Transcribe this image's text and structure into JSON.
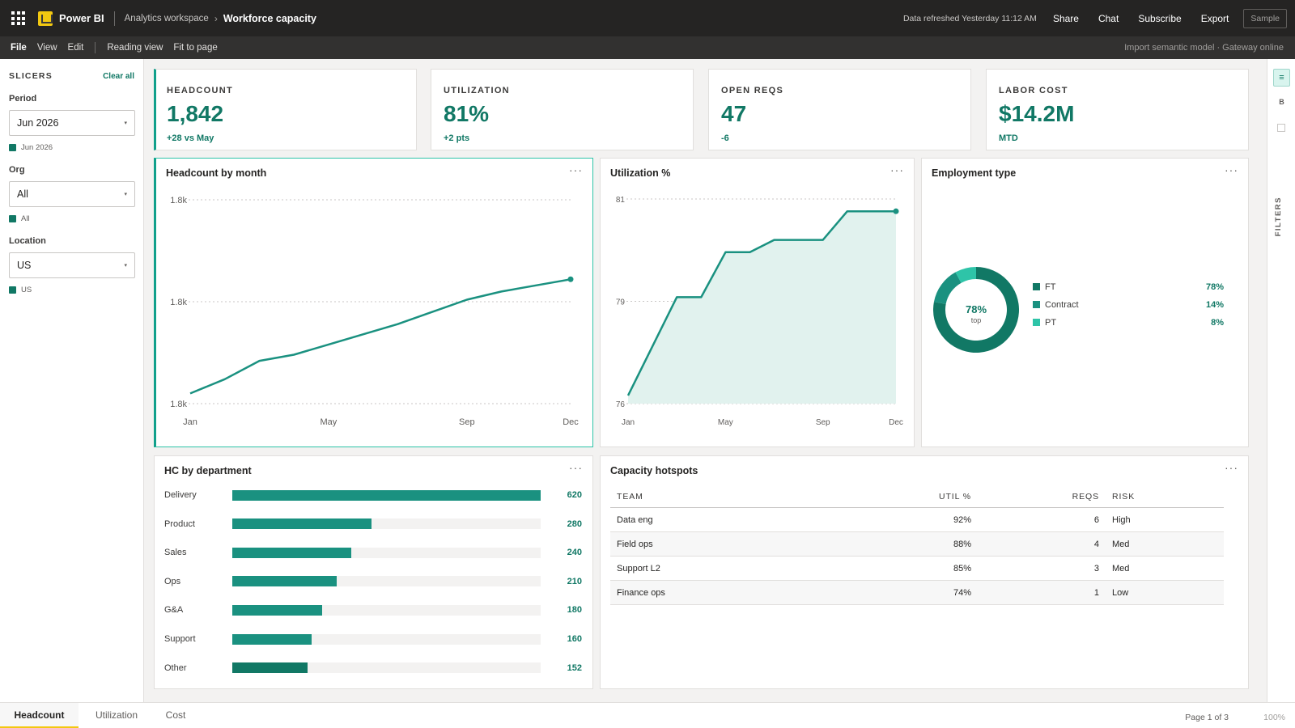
{
  "app": {
    "brand": "Power BI",
    "workspace": "Analytics workspace",
    "report": "Workforce capacity",
    "refresh": "Data refreshed Yesterday 11:12 AM",
    "actions": [
      "Share",
      "Chat",
      "Subscribe",
      "Export"
    ],
    "sample": "Sample"
  },
  "menu": {
    "items": [
      "File",
      "View",
      "Edit"
    ],
    "view_items": [
      "Reading view",
      "Fit to page"
    ],
    "status": "Import semantic model · Gateway online"
  },
  "slicers": {
    "title": "SLICERS",
    "clear": "Clear all",
    "items": [
      {
        "label": "Period",
        "value": "Jun 2026",
        "chip": "Jun 2026"
      },
      {
        "label": "Org",
        "value": "All",
        "chip": "All"
      },
      {
        "label": "Location",
        "value": "US",
        "chip": "US"
      }
    ]
  },
  "kpis": [
    {
      "label": "HEADCOUNT",
      "value": "1,842",
      "delta": "+28 vs May"
    },
    {
      "label": "UTILIZATION",
      "value": "81%",
      "delta": "+2 pts"
    },
    {
      "label": "OPEN REQS",
      "value": "47",
      "delta": "-6"
    },
    {
      "label": "LABOR COST",
      "value": "$14.2M",
      "delta": "MTD"
    }
  ],
  "visuals": {
    "headcount_title": "Headcount by month",
    "util_title": "Utilization %",
    "emp_title": "Employment type",
    "dept_title": "HC by department",
    "hotspots_title": "Capacity hotspots",
    "more": "···"
  },
  "colors": {
    "accent": "#117865",
    "accent_mid": "#1a9180",
    "accent_light": "#2ec4a8",
    "area_fill": "#e1f2ee",
    "brand_yellow": "#f2c811",
    "topbar": "#252423"
  },
  "chart_data": [
    {
      "type": "line",
      "title": "Headcount by month",
      "x": [
        "Jan",
        "Feb",
        "Mar",
        "Apr",
        "May",
        "Jun",
        "Jul",
        "Aug",
        "Sep",
        "Oct",
        "Nov",
        "Dec"
      ],
      "xticks": [
        "Jan",
        "May",
        "Sep",
        "Dec"
      ],
      "values": [
        1752,
        1759,
        1768,
        1771,
        1776,
        1781,
        1786,
        1792,
        1798,
        1802,
        1805,
        1808
      ],
      "yticks": [
        "1.8k",
        "1.8k",
        "1.8k"
      ],
      "ylim": [
        1747,
        1847
      ],
      "grid": true
    },
    {
      "type": "area",
      "title": "Utilization %",
      "x": [
        "Jan",
        "Feb",
        "Mar",
        "Apr",
        "May",
        "Jun",
        "Jul",
        "Aug",
        "Sep",
        "Oct",
        "Nov",
        "Dec"
      ],
      "xticks": [
        "Jan",
        "May",
        "Sep",
        "Dec"
      ],
      "values": [
        76.2,
        77.4,
        78.6,
        78.6,
        79.7,
        79.7,
        80.0,
        80.0,
        80.0,
        80.7,
        80.7,
        80.7
      ],
      "yticks": [
        "81",
        "79",
        "76"
      ],
      "ylim": [
        76,
        81
      ],
      "grid": true
    },
    {
      "type": "pie",
      "title": "Employment type",
      "center_value": "78%",
      "center_label": "top",
      "slices": [
        {
          "label": "FT",
          "value": 78,
          "display": "78%",
          "color": "#117865"
        },
        {
          "label": "Contract",
          "value": 14,
          "display": "14%",
          "color": "#1a9180"
        },
        {
          "label": "PT",
          "value": 8,
          "display": "8%",
          "color": "#2ec4a8"
        }
      ]
    },
    {
      "type": "bar",
      "title": "HC by department",
      "categories": [
        "Delivery",
        "Product",
        "Sales",
        "Ops",
        "G&A",
        "Support",
        "Other"
      ],
      "values": [
        620,
        280,
        240,
        210,
        180,
        160,
        152
      ],
      "labels": [
        "620",
        "280",
        "240",
        "210",
        "180",
        "160",
        "152"
      ],
      "xlim": [
        0,
        620
      ]
    },
    {
      "type": "table",
      "title": "Capacity hotspots",
      "columns": [
        "TEAM",
        "UTIL %",
        "REQS",
        "RISK"
      ],
      "rows": [
        [
          "Data eng",
          "92%",
          "6",
          "High"
        ],
        [
          "Field ops",
          "88%",
          "4",
          "Med"
        ],
        [
          "Support L2",
          "85%",
          "3",
          "Med"
        ],
        [
          "Finance ops",
          "74%",
          "1",
          "Low"
        ]
      ]
    }
  ],
  "rightpane": {
    "icon": "≡",
    "b": "B",
    "filters": "FILTERS"
  },
  "pages": {
    "tabs": [
      "Headcount",
      "Utilization",
      "Cost"
    ],
    "info": "Page 1 of 3",
    "zoom": "100%"
  }
}
